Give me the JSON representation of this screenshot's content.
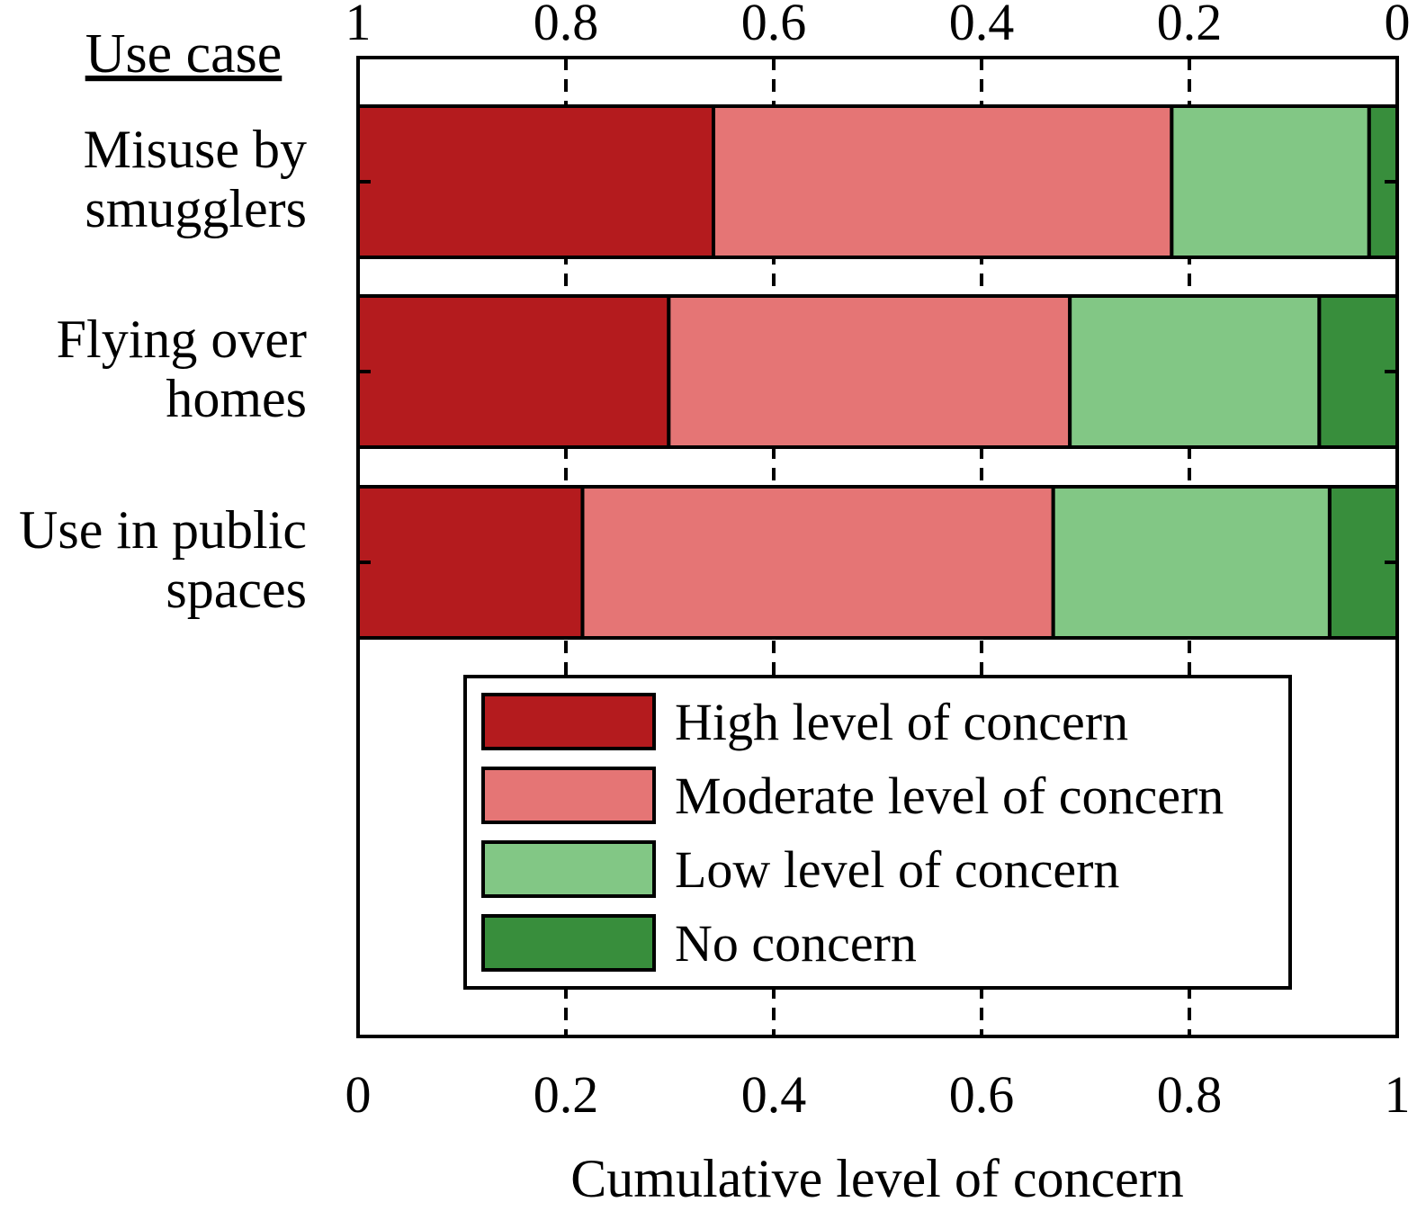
{
  "chart_data": {
    "type": "bar",
    "orientation": "horizontal",
    "stacked": true,
    "title": "",
    "ylabel": "Use case",
    "xlabel": "Cumulative level of concern",
    "xlim": [
      0,
      1
    ],
    "top_axis_reversed": true,
    "bottom_ticks": [
      "0",
      "0.2",
      "0.4",
      "0.6",
      "0.8",
      "1"
    ],
    "top_ticks": [
      "1",
      "0.8",
      "0.6",
      "0.4",
      "0.2",
      "0"
    ],
    "gridlines_at": [
      0.2,
      0.4,
      0.6,
      0.8
    ],
    "grid": "dashed vertical",
    "legend_position": "bottom-center",
    "categories": [
      {
        "lines": [
          "Misuse by",
          "smugglers"
        ]
      },
      {
        "lines": [
          "Flying over",
          "homes"
        ]
      },
      {
        "lines": [
          "Use in public",
          "spaces"
        ]
      }
    ],
    "series": [
      {
        "name": "High level of concern",
        "color": "#b41b1e",
        "values": [
          0.342,
          0.299,
          0.216
        ]
      },
      {
        "name": "Moderate level of concern",
        "color": "#e57575",
        "values": [
          0.441,
          0.386,
          0.453
        ]
      },
      {
        "name": "Low level of concern",
        "color": "#82c785",
        "values": [
          0.19,
          0.24,
          0.266
        ]
      },
      {
        "name": "No concern",
        "color": "#388e3c",
        "values": [
          0.027,
          0.075,
          0.065
        ]
      }
    ]
  }
}
